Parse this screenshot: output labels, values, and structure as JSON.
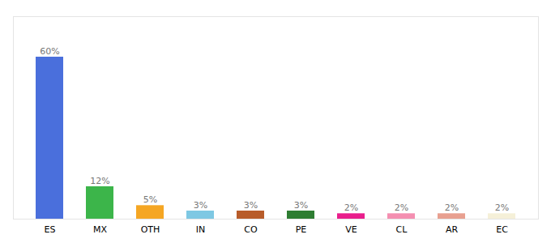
{
  "chart_data": {
    "type": "bar",
    "categories": [
      "ES",
      "MX",
      "OTH",
      "IN",
      "CO",
      "PE",
      "VE",
      "CL",
      "AR",
      "EC"
    ],
    "values": [
      60,
      12,
      5,
      3,
      3,
      3,
      2,
      2,
      2,
      2
    ],
    "value_labels": [
      "60%",
      "12%",
      "5%",
      "3%",
      "3%",
      "3%",
      "2%",
      "2%",
      "2%",
      "2%"
    ],
    "colors": [
      "#4a6fdc",
      "#3cb54a",
      "#f5a623",
      "#7ec8e3",
      "#b85c2a",
      "#2e7d32",
      "#e91e8c",
      "#f48fb1",
      "#e8a090",
      "#f5f0d8"
    ],
    "ylim": [
      0,
      75
    ],
    "data_labels": true,
    "tick_labels": "x",
    "grid": false
  }
}
